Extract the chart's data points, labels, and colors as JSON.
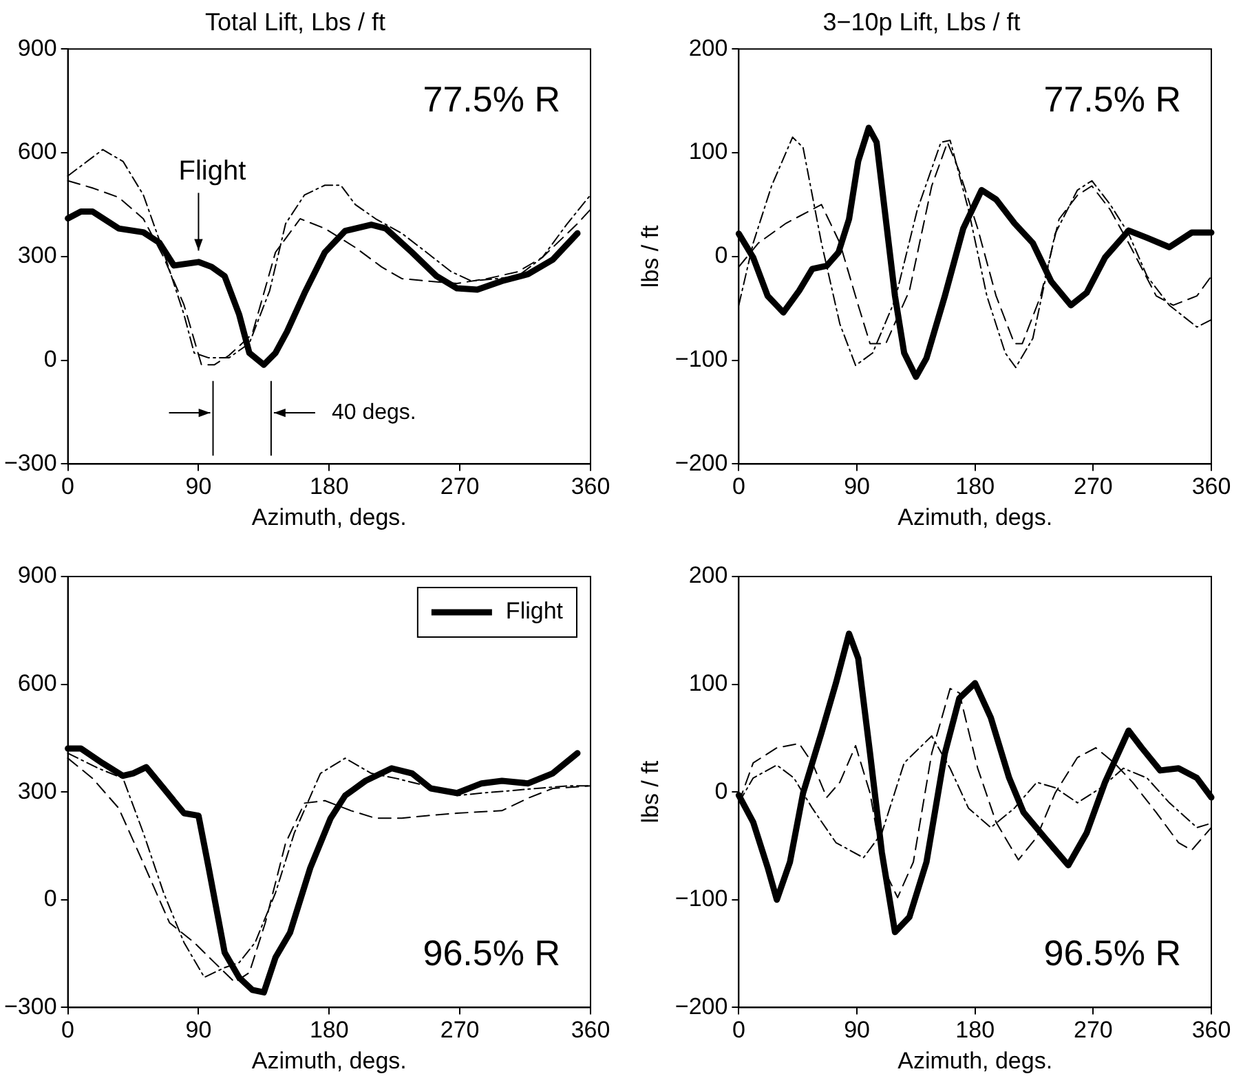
{
  "chart_data": [
    {
      "type": "line",
      "title": "Total Lift, Lbs / ft",
      "xlabel": "Azimuth, degs.",
      "xlim": [
        0,
        360
      ],
      "xticks": [
        0,
        90,
        180,
        270,
        360
      ],
      "ylim": [
        -300,
        900
      ],
      "yticks": [
        -300,
        0,
        300,
        600,
        900
      ],
      "annotations": [
        "77.5% R",
        {
          "text": "Flight",
          "x": 90,
          "y": 285
        }
      ],
      "ref_lines": [
        {
          "axis": "x",
          "value": 100
        },
        {
          "axis": "x",
          "value": 140,
          "label": "40 degs."
        }
      ],
      "series": [
        {
          "color": "#000000",
          "line_style": "dashed",
          "x": [
            0,
            17,
            35,
            52,
            66,
            80,
            92,
            101,
            111,
            127,
            143,
            160,
            177,
            198,
            216,
            230,
            247,
            268,
            289,
            310,
            327,
            351,
            360
          ],
          "values": [
            519,
            498,
            471,
            409,
            298,
            160,
            -13,
            -13,
            14,
            76,
            312,
            409,
            381,
            326,
            270,
            236,
            229,
            222,
            236,
            256,
            298,
            395,
            436
          ]
        },
        {
          "color": "#000000",
          "line_style": "dotted",
          "x": [
            0,
            24,
            38,
            52,
            66,
            80,
            87,
            97,
            111,
            125,
            139,
            150,
            163,
            177,
            188,
            198,
            212,
            230,
            247,
            264,
            278,
            296,
            310,
            327,
            344,
            360
          ],
          "values": [
            533,
            609,
            575,
            478,
            312,
            132,
            21,
            7,
            7,
            49,
            201,
            395,
            478,
            506,
            506,
            450,
            409,
            367,
            312,
            256,
            229,
            236,
            243,
            298,
            395,
            478
          ]
        },
        {
          "color": "#000000",
          "line_style": "solid",
          "x": [
            0,
            9,
            17,
            35,
            52,
            63,
            73,
            90,
            99,
            108,
            118,
            125,
            135,
            143,
            151,
            163,
            177,
            191,
            209,
            219,
            237,
            254,
            268,
            282,
            299,
            317,
            334,
            351
          ],
          "values": [
            410,
            430,
            430,
            381,
            370,
            340,
            274,
            284,
            270,
            243,
            132,
            21,
            -13,
            21,
            83,
            194,
            312,
            374,
            392,
            381,
            312,
            243,
            208,
            204,
            229,
            249,
            291,
            367
          ]
        }
      ]
    },
    {
      "type": "line",
      "title": "3−10p Lift, Lbs / ft",
      "xlabel": "Azimuth, degs.",
      "ylabel": "lbs / ft",
      "xlim": [
        0,
        360
      ],
      "xticks": [
        0,
        90,
        180,
        270,
        360
      ],
      "ylim": [
        -200,
        200
      ],
      "yticks": [
        -200,
        -100,
        0,
        100,
        200
      ],
      "annotations": [
        "77.5% R"
      ],
      "series": [
        {
          "color": "#000000",
          "line_style": "dashed",
          "x": [
            0,
            15,
            36,
            63,
            77,
            91,
            100,
            112,
            130,
            147,
            159,
            168,
            182,
            196,
            210,
            216,
            230,
            244,
            258,
            269,
            283,
            297,
            318,
            331,
            349,
            360
          ],
          "values": [
            -10,
            13,
            32,
            50,
            13,
            -47,
            -84,
            -84,
            -33,
            68,
            110,
            82,
            27,
            -38,
            -84,
            -84,
            -38,
            36,
            59,
            68,
            45,
            13,
            -38,
            -47,
            -38,
            -19
          ]
        },
        {
          "color": "#000000",
          "line_style": "dotted",
          "x": [
            0,
            11,
            25,
            41,
            49,
            63,
            77,
            89,
            102,
            119,
            136,
            154,
            161,
            175,
            189,
            203,
            211,
            224,
            241,
            258,
            269,
            283,
            297,
            311,
            328,
            349,
            360
          ],
          "values": [
            -47,
            13,
            68,
            115,
            105,
            13,
            -65,
            -105,
            -93,
            -42,
            45,
            110,
            112,
            45,
            -38,
            -93,
            -107,
            -79,
            22,
            64,
            73,
            50,
            22,
            -19,
            -47,
            -68,
            -61
          ]
        },
        {
          "color": "#000000",
          "line_style": "solid",
          "x": [
            0,
            11,
            22,
            34,
            46,
            56,
            67,
            76,
            84,
            91,
            99,
            105,
            112,
            119,
            126,
            135,
            143,
            157,
            171,
            185,
            196,
            210,
            224,
            238,
            253,
            265,
            279,
            297,
            311,
            328,
            345,
            360
          ],
          "values": [
            22,
            -1,
            -38,
            -54,
            -33,
            -12,
            -9,
            4,
            36,
            92,
            124,
            110,
            36,
            -38,
            -93,
            -116,
            -98,
            -38,
            27,
            64,
            55,
            32,
            13,
            -24,
            -47,
            -35,
            -1,
            25,
            18,
            9,
            23,
            23
          ]
        }
      ]
    },
    {
      "type": "line",
      "xlabel": "Azimuth, degs.",
      "xlim": [
        0,
        360
      ],
      "xticks": [
        0,
        90,
        180,
        270,
        360
      ],
      "ylim": [
        -300,
        900
      ],
      "yticks": [
        -300,
        0,
        300,
        600,
        900
      ],
      "annotations": [
        "96.5% R"
      ],
      "legend": "top right",
      "series": [
        {
          "color": "#000000",
          "line_style": "dashed",
          "x": [
            0,
            17,
            35,
            52,
            70,
            87,
            101,
            115,
            125,
            136,
            150,
            163,
            177,
            195,
            212,
            230,
            247,
            268,
            299,
            317,
            334,
            360
          ],
          "values": [
            394,
            338,
            255,
            102,
            -64,
            -119,
            -175,
            -230,
            -203,
            -64,
            158,
            269,
            276,
            248,
            227,
            227,
            234,
            241,
            248,
            283,
            310,
            317
          ]
        },
        {
          "color": "#000000",
          "line_style": "dotted",
          "x": [
            0,
            21,
            38,
            52,
            66,
            80,
            94,
            108,
            118,
            129,
            143,
            156,
            174,
            191,
            209,
            226,
            247,
            268,
            285,
            303,
            323,
            344,
            360
          ],
          "values": [
            408,
            366,
            338,
            186,
            19,
            -119,
            -216,
            -189,
            -175,
            -119,
            19,
            186,
            352,
            394,
            352,
            338,
            317,
            290,
            297,
            303,
            310,
            317,
            317
          ]
        },
        {
          "name": "Flight",
          "color": "#000000",
          "line_style": "solid",
          "x": [
            0,
            9,
            24,
            38,
            45,
            54,
            66,
            80,
            90,
            97,
            108,
            118,
            127,
            135,
            143,
            153,
            167,
            181,
            191,
            205,
            223,
            237,
            250,
            268,
            285,
            299,
            317,
            334,
            351
          ],
          "values": [
            421,
            421,
            380,
            345,
            352,
            369,
            310,
            241,
            234,
            89,
            -147,
            -217,
            -251,
            -258,
            -161,
            -92,
            89,
            227,
            290,
            331,
            366,
            352,
            310,
            297,
            324,
            331,
            324,
            352,
            408
          ]
        }
      ]
    },
    {
      "type": "line",
      "xlabel": "Azimuth, degs.",
      "ylabel": "lbs / ft",
      "xlim": [
        0,
        360
      ],
      "xticks": [
        0,
        90,
        180,
        270,
        360
      ],
      "ylim": [
        -200,
        200
      ],
      "yticks": [
        -200,
        -100,
        0,
        100,
        200
      ],
      "annotations": [
        "96.5% R"
      ],
      "series": [
        {
          "color": "#000000",
          "line_style": "dashed",
          "x": [
            0,
            11,
            29,
            46,
            56,
            67,
            77,
            89,
            100,
            110,
            121,
            133,
            147,
            161,
            168,
            182,
            196,
            213,
            227,
            241,
            258,
            272,
            286,
            300,
            318,
            335,
            345,
            360
          ],
          "values": [
            -10,
            27,
            41,
            45,
            27,
            -5,
            9,
            43,
            -1,
            -70,
            -98,
            -65,
            36,
            96,
            92,
            22,
            -28,
            -63,
            -42,
            -1,
            32,
            41,
            27,
            9,
            -19,
            -47,
            -54,
            -33
          ]
        },
        {
          "color": "#000000",
          "line_style": "dotted",
          "x": [
            0,
            11,
            29,
            42,
            56,
            74,
            95,
            109,
            126,
            147,
            161,
            175,
            192,
            210,
            227,
            241,
            258,
            276,
            293,
            311,
            328,
            349,
            360
          ],
          "values": [
            -10,
            13,
            25,
            13,
            -15,
            -47,
            -61,
            -38,
            27,
            52,
            22,
            -15,
            -33,
            -15,
            9,
            4,
            -10,
            4,
            22,
            13,
            -10,
            -33,
            -29
          ]
        },
        {
          "color": "#000000",
          "line_style": "solid",
          "x": [
            0,
            11,
            22,
            29,
            39,
            49,
            63,
            74,
            84,
            91,
            100,
            109,
            119,
            130,
            143,
            157,
            168,
            180,
            192,
            206,
            217,
            230,
            251,
            265,
            279,
            297,
            307,
            321,
            335,
            349,
            360
          ],
          "values": [
            -3,
            -28,
            -70,
            -100,
            -65,
            -1,
            55,
            101,
            147,
            124,
            36,
            -56,
            -130,
            -116,
            -65,
            36,
            87,
            101,
            69,
            13,
            -19,
            -38,
            -68,
            -38,
            9,
            57,
            41,
            20,
            22,
            13,
            -5
          ]
        }
      ]
    }
  ]
}
